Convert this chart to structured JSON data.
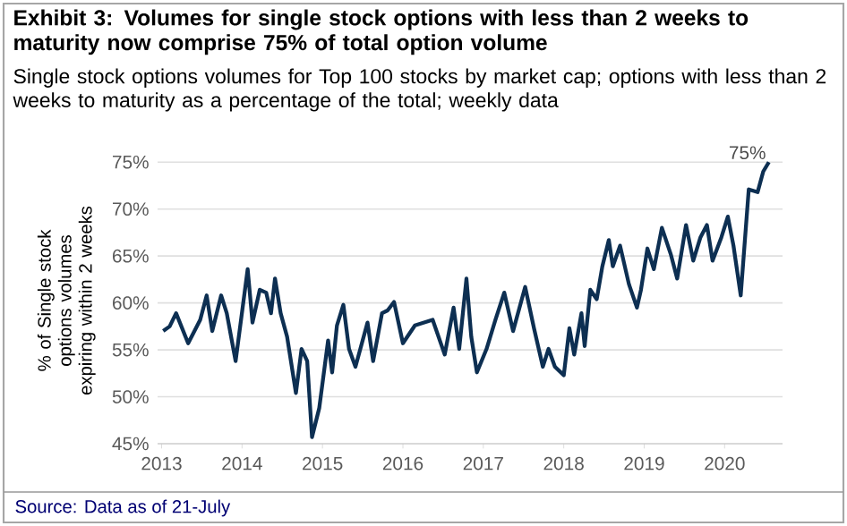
{
  "chart_data": {
    "type": "line",
    "title": "Exhibit 3: Volumes for single stock options with less than 2 weeks to maturity now comprise 75% of total option volume",
    "subtitle": "Single stock options volumes for Top 100 stocks by market cap; options with less than 2 weeks to maturity as a percentage of the total; weekly data",
    "ylabel": "% of Single stock options volumes expiring within 2 weeks",
    "annotations": [
      {
        "text": "75%",
        "x": 2020.55,
        "y": 75
      },
      "Source: Data as of 21-July"
    ],
    "x": [
      2013.02,
      2013.1,
      2013.18,
      2013.33,
      2013.48,
      2013.56,
      2013.63,
      2013.74,
      2013.81,
      2013.92,
      2014.07,
      2014.13,
      2014.22,
      2014.3,
      2014.36,
      2014.41,
      2014.48,
      2014.56,
      2014.67,
      2014.74,
      2014.81,
      2014.87,
      2014.96,
      2015.07,
      2015.12,
      2015.18,
      2015.26,
      2015.33,
      2015.41,
      2015.56,
      2015.63,
      2015.74,
      2015.81,
      2015.89,
      2016.0,
      2016.15,
      2016.37,
      2016.52,
      2016.63,
      2016.7,
      2016.79,
      2016.85,
      2016.92,
      2017.04,
      2017.15,
      2017.26,
      2017.37,
      2017.52,
      2017.63,
      2017.74,
      2017.81,
      2017.89,
      2018.0,
      2018.07,
      2018.13,
      2018.22,
      2018.26,
      2018.33,
      2018.41,
      2018.48,
      2018.56,
      2018.61,
      2018.7,
      2018.81,
      2018.91,
      2018.96,
      2019.04,
      2019.12,
      2019.22,
      2019.33,
      2019.41,
      2019.52,
      2019.61,
      2019.7,
      2019.78,
      2019.85,
      2019.96,
      2020.04,
      2020.11,
      2020.2,
      2020.3,
      2020.41,
      2020.48,
      2020.55
    ],
    "series": [
      {
        "color": "#0d2f52",
        "values": [
          57.0,
          57.5,
          58.9,
          55.7,
          58.2,
          60.8,
          57.0,
          60.8,
          58.9,
          53.8,
          63.6,
          57.9,
          61.4,
          61.1,
          58.9,
          62.6,
          58.9,
          56.4,
          50.4,
          55.1,
          53.8,
          45.7,
          48.8,
          56.0,
          52.6,
          57.6,
          59.8,
          55.1,
          53.2,
          57.9,
          53.8,
          58.9,
          59.2,
          60.1,
          55.7,
          57.6,
          58.2,
          54.5,
          59.5,
          55.1,
          62.6,
          56.4,
          52.6,
          55.1,
          58.2,
          61.1,
          57.0,
          61.7,
          57.3,
          53.2,
          55.1,
          53.2,
          52.3,
          57.3,
          54.5,
          58.9,
          55.4,
          61.4,
          60.4,
          63.9,
          66.7,
          63.9,
          66.1,
          62.0,
          59.5,
          61.4,
          65.8,
          63.6,
          68.0,
          65.2,
          62.6,
          68.3,
          64.5,
          67.0,
          68.3,
          64.5,
          67.0,
          69.2,
          66.1,
          60.8,
          72.1,
          71.8,
          74.0,
          75.0
        ]
      }
    ],
    "xlim": [
      2012.95,
      2020.72
    ],
    "ylim": [
      45,
      75.5
    ],
    "xticks": [
      2013,
      2014,
      2015,
      2016,
      2017,
      2018,
      2019,
      2020
    ],
    "yticks": [
      {
        "value": 45,
        "label": "45%"
      },
      {
        "value": 50,
        "label": "50%"
      },
      {
        "value": 55,
        "label": "55%"
      },
      {
        "value": 60,
        "label": "60%"
      },
      {
        "value": 65,
        "label": "65%"
      },
      {
        "value": 70,
        "label": "70%"
      },
      {
        "value": 75,
        "label": "75%"
      }
    ],
    "grid": "y",
    "marker": "none",
    "line_style": "solid"
  }
}
